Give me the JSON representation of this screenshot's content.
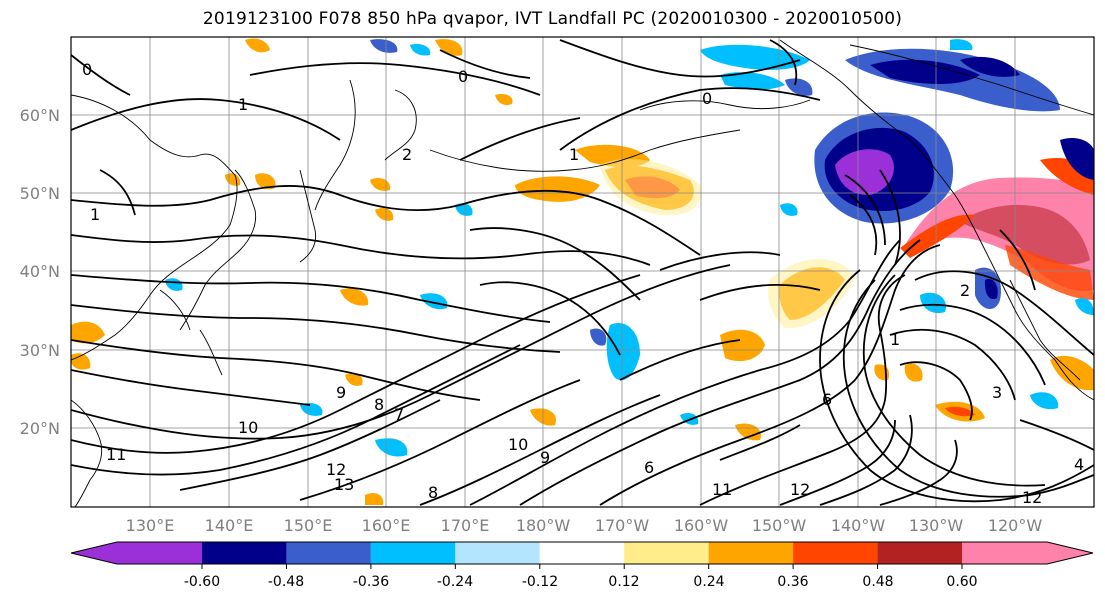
{
  "title": "2019123100 F078 850 hPa qvapor, IVT Landfall PC (2020010300 - 2020010500)",
  "lat_labels": [
    "60°N",
    "50°N",
    "40°N",
    "30°N",
    "20°N"
  ],
  "lon_labels": [
    "130°E",
    "140°E",
    "150°E",
    "160°E",
    "170°E",
    "180°W",
    "170°W",
    "160°W",
    "150°W",
    "140°W",
    "130°W",
    "120°W"
  ],
  "colorbar": {
    "colors": [
      "#9b30d9",
      "#00008b",
      "#3a5fcd",
      "#00bfff",
      "#b3e5ff",
      "#ffffff",
      "#ffec8b",
      "#ffa500",
      "#ff4500",
      "#b22222",
      "#ff82ab"
    ],
    "tick_labels": [
      "-0.60",
      "-0.48",
      "-0.36",
      "-0.24",
      "-0.12",
      "0.12",
      "0.24",
      "0.36",
      "0.48",
      "0.60"
    ]
  },
  "contour_labels": [
    {
      "text": "0"
    },
    {
      "text": "0"
    },
    {
      "text": "0"
    },
    {
      "text": "1"
    },
    {
      "text": "1"
    },
    {
      "text": "1"
    },
    {
      "text": "2"
    },
    {
      "text": "9"
    },
    {
      "text": "8"
    },
    {
      "text": "7"
    },
    {
      "text": "10"
    },
    {
      "text": "11"
    },
    {
      "text": "12"
    },
    {
      "text": "13"
    },
    {
      "text": "10"
    },
    {
      "text": "9"
    },
    {
      "text": "8"
    },
    {
      "text": "6"
    },
    {
      "text": "11"
    },
    {
      "text": "12"
    },
    {
      "text": "12"
    },
    {
      "text": "6"
    },
    {
      "text": "1"
    },
    {
      "text": "3"
    },
    {
      "text": "2"
    },
    {
      "text": "4"
    }
  ]
}
